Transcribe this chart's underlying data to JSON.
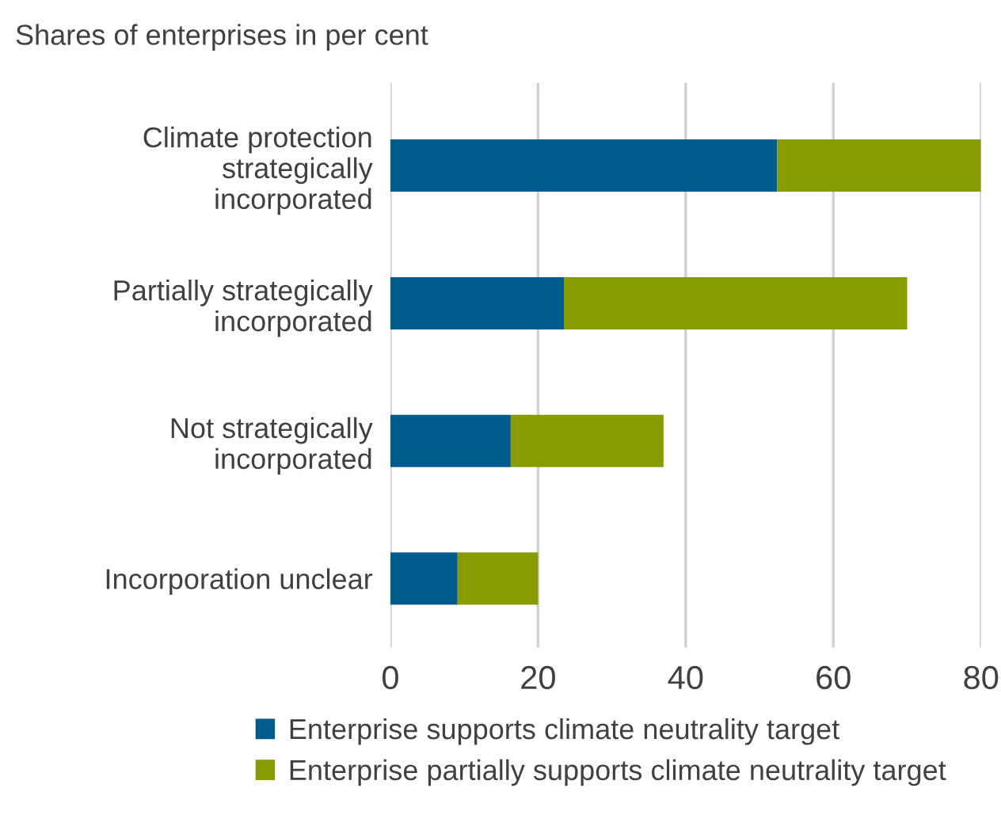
{
  "chart_data": {
    "type": "bar",
    "orientation": "horizontal",
    "stacked": true,
    "title": "Shares of enterprises in per cent",
    "categories": [
      "Climate protection\nstrategically\nincorporated",
      "Partially strategically\nincorporated",
      "Not strategically\nincorporated",
      "Incorporation unclear"
    ],
    "series": [
      {
        "name": "Enterprise supports climate neutrality target",
        "color": "#005b8e",
        "values": [
          52.4,
          23.5,
          16.3,
          9.1
        ]
      },
      {
        "name": "Enterprise partially supports climate neutrality target",
        "color": "#889b00",
        "values": [
          27.6,
          46.5,
          20.7,
          10.9
        ]
      }
    ],
    "xlim": [
      0,
      80
    ],
    "xticks": [
      0,
      20,
      40,
      60,
      80
    ],
    "grid": "x",
    "legend": "bottom"
  }
}
